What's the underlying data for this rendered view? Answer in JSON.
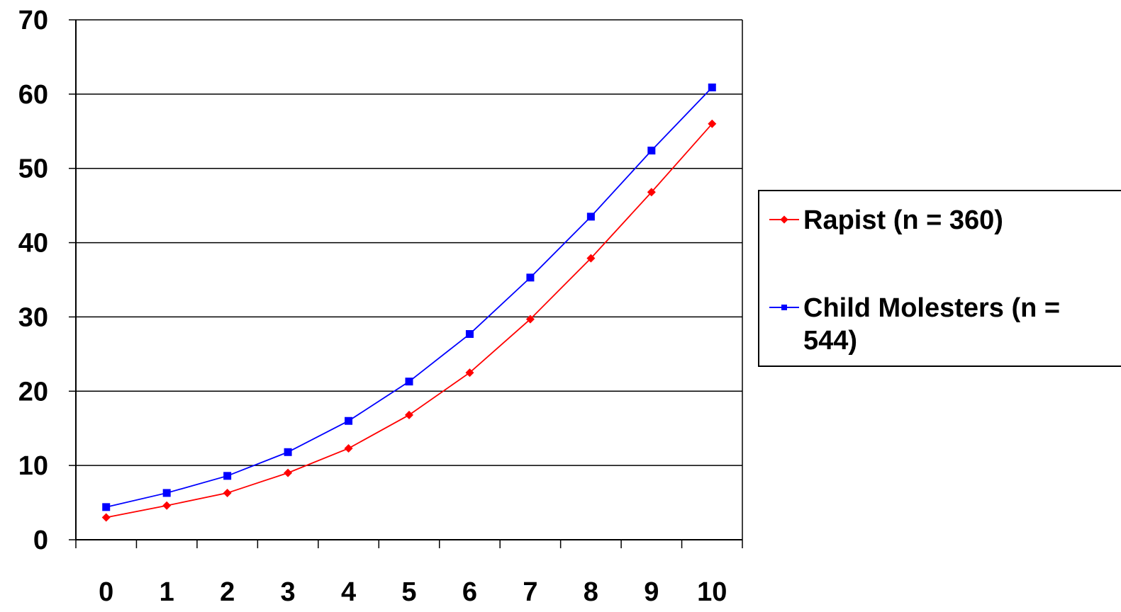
{
  "chart_data": {
    "type": "line",
    "title": "",
    "xlabel": "",
    "ylabel": "",
    "x": [
      0,
      1,
      2,
      3,
      4,
      5,
      6,
      7,
      8,
      9,
      10
    ],
    "ylim": [
      0,
      70
    ],
    "yticks": [
      0,
      10,
      20,
      30,
      40,
      50,
      60,
      70
    ],
    "grid": "horizontal",
    "legend_position": "right",
    "series": [
      {
        "name": "Rapist (n = 360)",
        "color": "#ff0000",
        "marker": "diamond",
        "values": [
          3.0,
          4.6,
          6.3,
          9.0,
          12.3,
          16.8,
          22.5,
          29.7,
          37.9,
          46.8,
          56.0
        ]
      },
      {
        "name": "Child Molesters (n = 544)",
        "color": "#0000ff",
        "marker": "square",
        "values": [
          4.4,
          6.3,
          8.6,
          11.8,
          16.0,
          21.3,
          27.7,
          35.3,
          43.5,
          52.4,
          60.9
        ]
      }
    ]
  }
}
